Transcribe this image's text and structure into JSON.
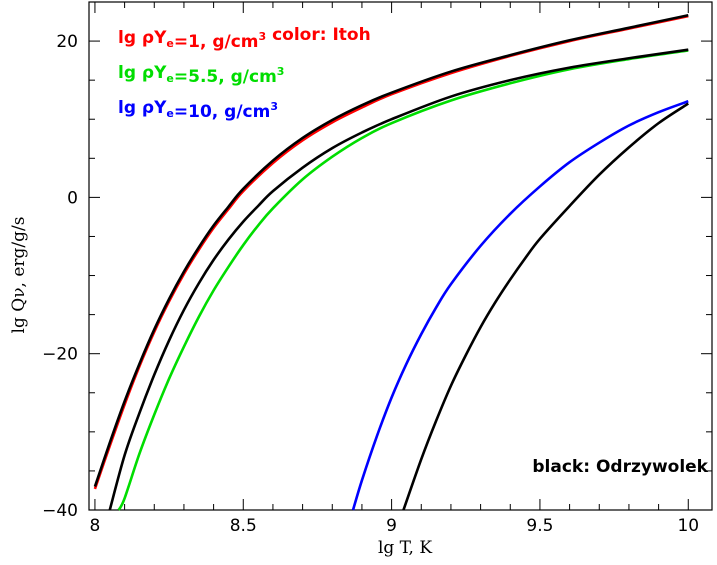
{
  "chart_data": {
    "type": "line",
    "xlabel": "lg T, K",
    "ylabel": "lg Qν, erg/g/s",
    "xlim": [
      7.98,
      10.08
    ],
    "ylim": [
      -40,
      25
    ],
    "x_ticks": [
      8,
      8.5,
      9,
      9.5,
      10
    ],
    "x_tick_labels": [
      "8",
      "8.5",
      "9",
      "9.5",
      "10"
    ],
    "y_ticks": [
      -40,
      -20,
      0,
      20
    ],
    "y_tick_labels": [
      "−40",
      "−20",
      "0",
      "20"
    ],
    "grid": false,
    "legend": {
      "placement": "top-left",
      "entries": [
        {
          "prefix": "lg ρY",
          "sub": "e",
          "suffix": "=1, g/cm",
          "sup": "3",
          "extra": "   color: Itoh",
          "color": "#ff0000"
        },
        {
          "prefix": "lg ρY",
          "sub": "e",
          "suffix": "=5.5, g/cm",
          "sup": "3",
          "extra": "",
          "color": "#00dd00"
        },
        {
          "prefix": "lg ρY",
          "sub": "e",
          "suffix": "=10, g/cm",
          "sup": "3",
          "extra": "",
          "color": "#0000ff"
        }
      ]
    },
    "annotation": "black: Odrzywolek",
    "series": [
      {
        "color": "#ff0000",
        "x": [
          8.0,
          8.05,
          8.1,
          8.15,
          8.2,
          8.25,
          8.3,
          8.35,
          8.4,
          8.45,
          8.5,
          8.6,
          8.7,
          8.8,
          8.9,
          9.0,
          9.2,
          9.4,
          9.6,
          9.8,
          10.0
        ],
        "y": [
          -37.3,
          -31.8,
          -26.5,
          -21.6,
          -17.2,
          -13.3,
          -9.8,
          -6.7,
          -3.9,
          -1.5,
          0.8,
          4.4,
          7.3,
          9.6,
          11.5,
          13.2,
          15.9,
          18.1,
          20.0,
          21.6,
          23.2
        ]
      },
      {
        "color": "#000000",
        "x": [
          8.0,
          8.05,
          8.1,
          8.15,
          8.2,
          8.25,
          8.3,
          8.35,
          8.4,
          8.45,
          8.5,
          8.6,
          8.7,
          8.8,
          8.9,
          9.0,
          9.2,
          9.4,
          9.6,
          9.8,
          10.0
        ],
        "y": [
          -37.0,
          -31.4,
          -26.1,
          -21.3,
          -16.9,
          -13.0,
          -9.5,
          -6.4,
          -3.6,
          -1.2,
          1.1,
          4.7,
          7.6,
          9.9,
          11.8,
          13.4,
          16.1,
          18.2,
          20.1,
          21.7,
          23.3
        ]
      },
      {
        "color": "#00dd00",
        "x": [
          8.08,
          8.1,
          8.15,
          8.2,
          8.25,
          8.3,
          8.35,
          8.4,
          8.45,
          8.5,
          8.55,
          8.6,
          8.7,
          8.8,
          8.9,
          9.0,
          9.2,
          9.4,
          9.6,
          9.8,
          10.0
        ],
        "y": [
          -40.0,
          -38.5,
          -32.8,
          -27.8,
          -23.2,
          -19.1,
          -15.3,
          -11.9,
          -8.9,
          -6.1,
          -3.6,
          -1.4,
          2.3,
          5.2,
          7.6,
          9.5,
          12.4,
          14.6,
          16.4,
          17.7,
          18.8
        ]
      },
      {
        "color": "#000000",
        "x": [
          8.05,
          8.1,
          8.15,
          8.2,
          8.25,
          8.3,
          8.35,
          8.4,
          8.45,
          8.5,
          8.55,
          8.6,
          8.7,
          8.8,
          8.9,
          9.0,
          9.2,
          9.4,
          9.6,
          9.8,
          10.0
        ],
        "y": [
          -40.0,
          -33.0,
          -27.6,
          -22.7,
          -18.3,
          -14.4,
          -11.0,
          -8.0,
          -5.4,
          -3.1,
          -1.1,
          0.8,
          3.8,
          6.3,
          8.3,
          10.0,
          12.9,
          15.0,
          16.6,
          17.8,
          18.9
        ]
      },
      {
        "color": "#0000ff",
        "x": [
          8.87,
          8.9,
          8.95,
          9.0,
          9.05,
          9.1,
          9.15,
          9.2,
          9.3,
          9.4,
          9.5,
          9.6,
          9.7,
          9.8,
          9.9,
          10.0
        ],
        "y": [
          -40.0,
          -36.2,
          -30.6,
          -25.6,
          -21.3,
          -17.5,
          -14.1,
          -11.1,
          -6.2,
          -2.1,
          1.4,
          4.5,
          7.0,
          9.2,
          10.9,
          12.3
        ]
      },
      {
        "color": "#000000",
        "x": [
          9.04,
          9.1,
          9.15,
          9.2,
          9.25,
          9.3,
          9.35,
          9.4,
          9.45,
          9.5,
          9.6,
          9.7,
          9.8,
          9.9,
          10.0
        ],
        "y": [
          -40.0,
          -33.5,
          -28.6,
          -24.1,
          -20.2,
          -16.6,
          -13.4,
          -10.5,
          -7.8,
          -5.3,
          -1.1,
          2.9,
          6.4,
          9.5,
          12.0
        ]
      }
    ]
  }
}
